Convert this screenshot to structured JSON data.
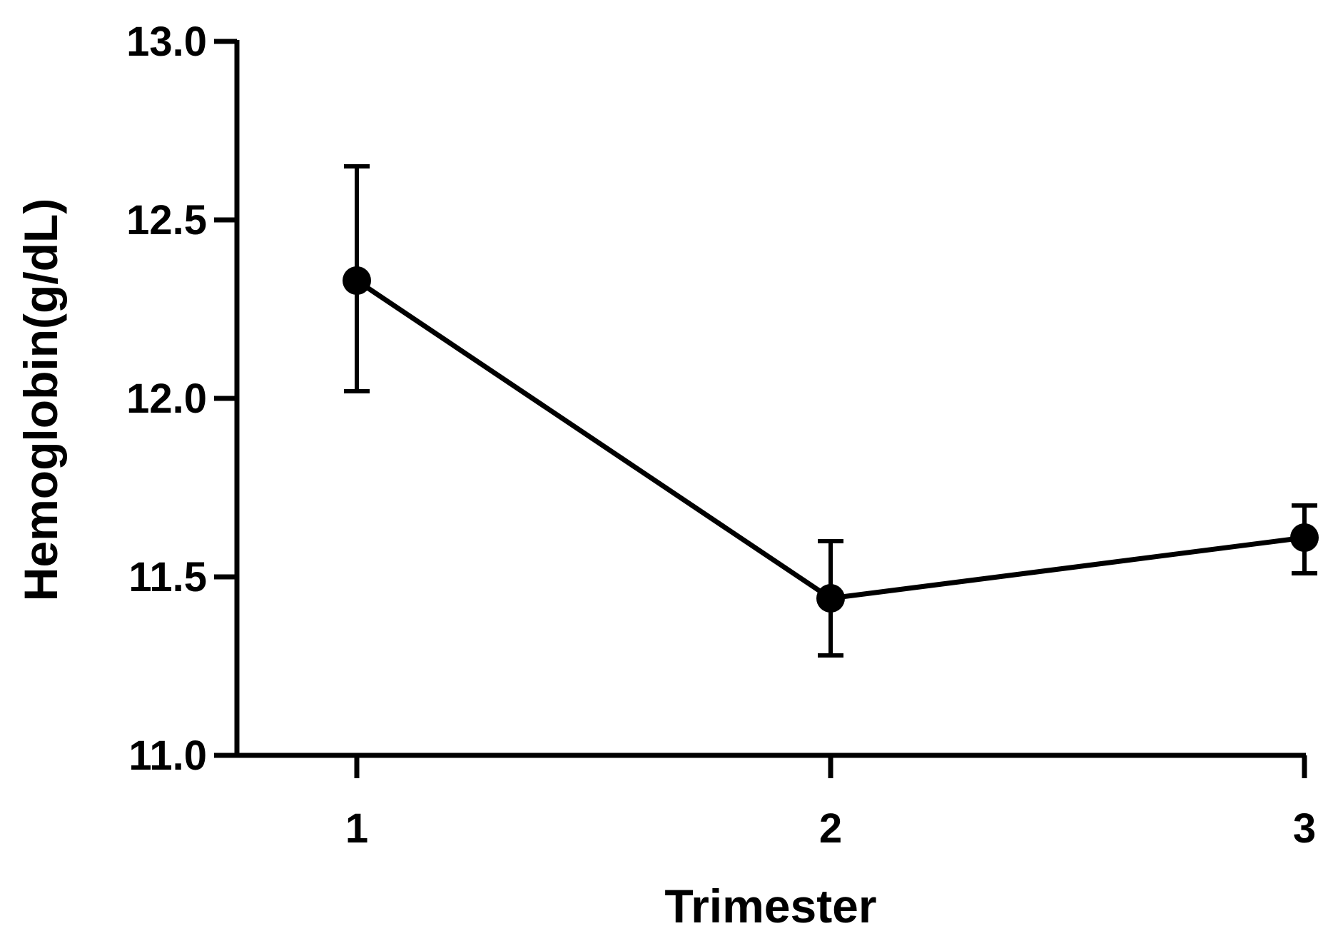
{
  "chart_data": {
    "type": "line",
    "title": "",
    "xlabel": "Trimester",
    "ylabel": "Hemoglobin(g/dL)",
    "x": [
      1,
      2,
      3
    ],
    "x_tick_labels": [
      "1",
      "2",
      "3"
    ],
    "y_tick_labels": [
      "11.0",
      "11.5",
      "12.0",
      "12.5",
      "13.0"
    ],
    "y_ticks": [
      11.0,
      11.5,
      12.0,
      12.5,
      13.0
    ],
    "ylim": [
      11.0,
      13.0
    ],
    "grid": false,
    "legend": "none",
    "series": [
      {
        "values": [
          12.33,
          11.44,
          11.61
        ],
        "error_low": [
          12.02,
          11.28,
          11.51
        ],
        "error_high": [
          12.65,
          11.6,
          11.7
        ],
        "color": "#000000",
        "marker": "circle"
      }
    ]
  }
}
